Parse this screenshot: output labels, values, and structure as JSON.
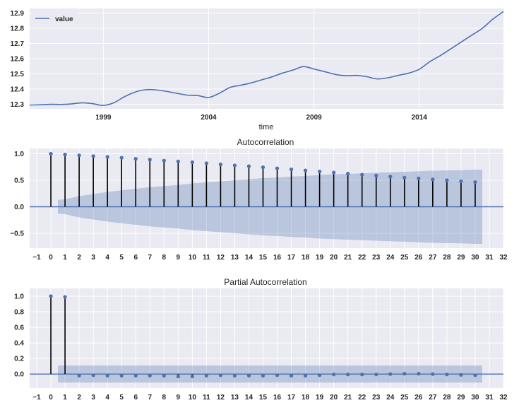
{
  "chart_data": [
    {
      "type": "line",
      "title": "",
      "xlabel": "time",
      "ylabel": "",
      "x_ticks": [
        "1999",
        "2004",
        "2009",
        "2014"
      ],
      "y_ticks": [
        "12.3",
        "12.4",
        "12.5",
        "12.6",
        "12.7",
        "12.8",
        "12.9"
      ],
      "xlim": [
        1995.5,
        2018.0
      ],
      "ylim": [
        12.27,
        12.93
      ],
      "grid": true,
      "legend_position": "top-left",
      "color": "#4C72B0",
      "series": [
        {
          "name": "value",
          "x": [
            1995.5,
            1996.0,
            1996.5,
            1997.0,
            1997.5,
            1998.0,
            1998.5,
            1999.0,
            1999.5,
            2000.0,
            2000.5,
            2001.0,
            2001.5,
            2002.0,
            2002.5,
            2003.0,
            2003.5,
            2004.0,
            2004.5,
            2005.0,
            2005.5,
            2006.0,
            2006.5,
            2007.0,
            2007.5,
            2008.0,
            2008.5,
            2009.0,
            2009.5,
            2010.0,
            2010.5,
            2011.0,
            2011.5,
            2012.0,
            2012.5,
            2013.0,
            2013.5,
            2014.0,
            2014.5,
            2015.0,
            2015.5,
            2016.0,
            2016.5,
            2017.0,
            2017.5,
            2018.0
          ],
          "values": [
            12.295,
            12.297,
            12.3,
            12.299,
            12.303,
            12.31,
            12.304,
            12.293,
            12.31,
            12.35,
            12.38,
            12.396,
            12.395,
            12.385,
            12.372,
            12.36,
            12.357,
            12.345,
            12.372,
            12.41,
            12.425,
            12.44,
            12.46,
            12.48,
            12.505,
            12.525,
            12.548,
            12.532,
            12.515,
            12.497,
            12.488,
            12.49,
            12.482,
            12.467,
            12.474,
            12.49,
            12.505,
            12.53,
            12.58,
            12.62,
            12.665,
            12.71,
            12.755,
            12.8,
            12.86,
            12.91
          ]
        }
      ]
    },
    {
      "type": "stem",
      "title": "Autocorrelation",
      "xlabel": "",
      "ylabel": "",
      "x_ticks": [
        "−1",
        "0",
        "1",
        "2",
        "3",
        "4",
        "5",
        "6",
        "7",
        "8",
        "9",
        "10",
        "11",
        "12",
        "13",
        "14",
        "15",
        "16",
        "17",
        "18",
        "19",
        "20",
        "21",
        "22",
        "23",
        "24",
        "25",
        "26",
        "27",
        "28",
        "29",
        "30",
        "31",
        "32"
      ],
      "y_ticks": [
        "−0.5",
        "0.0",
        "0.5",
        "1.0"
      ],
      "xlim": [
        -1.5,
        32.0
      ],
      "ylim": [
        -0.78,
        1.1
      ],
      "grid": true,
      "lags": [
        0,
        1,
        2,
        3,
        4,
        5,
        6,
        7,
        8,
        9,
        10,
        11,
        12,
        13,
        14,
        15,
        16,
        17,
        18,
        19,
        20,
        21,
        22,
        23,
        24,
        25,
        26,
        27,
        28,
        29,
        30
      ],
      "values": [
        1.0,
        0.985,
        0.97,
        0.955,
        0.94,
        0.925,
        0.905,
        0.89,
        0.87,
        0.855,
        0.84,
        0.82,
        0.8,
        0.78,
        0.765,
        0.745,
        0.725,
        0.705,
        0.685,
        0.665,
        0.645,
        0.625,
        0.605,
        0.59,
        0.57,
        0.55,
        0.535,
        0.515,
        0.5,
        0.48,
        0.465
      ],
      "confidence_band": {
        "x": [
          0.5,
          1,
          2,
          3,
          4,
          5,
          6,
          7,
          8,
          9,
          10,
          11,
          12,
          13,
          14,
          15,
          16,
          17,
          18,
          19,
          20,
          21,
          22,
          23,
          24,
          25,
          26,
          27,
          28,
          29,
          30,
          30.5
        ],
        "upper": [
          0.13,
          0.14,
          0.2,
          0.24,
          0.28,
          0.31,
          0.34,
          0.37,
          0.39,
          0.41,
          0.44,
          0.46,
          0.48,
          0.5,
          0.52,
          0.54,
          0.55,
          0.57,
          0.58,
          0.6,
          0.61,
          0.62,
          0.63,
          0.64,
          0.65,
          0.66,
          0.67,
          0.68,
          0.685,
          0.69,
          0.7,
          0.7
        ]
      },
      "colors": {
        "stem": "#000000",
        "marker": "#4C72B0",
        "band": "#4C72B0",
        "zero_line": "#4C72B0"
      }
    },
    {
      "type": "stem",
      "title": "Partial Autocorrelation",
      "xlabel": "",
      "ylabel": "",
      "x_ticks": [
        "−1",
        "0",
        "1",
        "2",
        "3",
        "4",
        "5",
        "6",
        "7",
        "8",
        "9",
        "10",
        "11",
        "12",
        "13",
        "14",
        "15",
        "16",
        "17",
        "18",
        "19",
        "20",
        "21",
        "22",
        "23",
        "24",
        "25",
        "26",
        "27",
        "28",
        "29",
        "30",
        "31",
        "32"
      ],
      "y_ticks": [
        "0.0",
        "0.2",
        "0.4",
        "0.6",
        "0.8",
        "1.0"
      ],
      "xlim": [
        -1.5,
        32.0
      ],
      "ylim": [
        -0.18,
        1.1
      ],
      "grid": true,
      "lags": [
        0,
        1,
        2,
        3,
        4,
        5,
        6,
        7,
        8,
        9,
        10,
        11,
        12,
        13,
        14,
        15,
        16,
        17,
        18,
        19,
        20,
        21,
        22,
        23,
        24,
        25,
        26,
        27,
        28,
        29,
        30
      ],
      "values": [
        1.0,
        0.99,
        -0.02,
        -0.015,
        -0.02,
        -0.02,
        -0.02,
        -0.02,
        -0.02,
        -0.03,
        -0.03,
        -0.02,
        -0.015,
        -0.02,
        -0.02,
        -0.02,
        -0.015,
        -0.02,
        -0.02,
        -0.015,
        -0.005,
        -0.005,
        -0.005,
        -0.005,
        0.0,
        0.005,
        0.005,
        0.0,
        -0.005,
        -0.01,
        -0.015
      ],
      "confidence_band": {
        "x": [
          0.5,
          30.5
        ],
        "upper": [
          0.11,
          0.11
        ]
      },
      "colors": {
        "stem": "#000000",
        "marker": "#4C72B0",
        "band": "#4C72B0",
        "zero_line": "#4C72B0"
      }
    }
  ]
}
